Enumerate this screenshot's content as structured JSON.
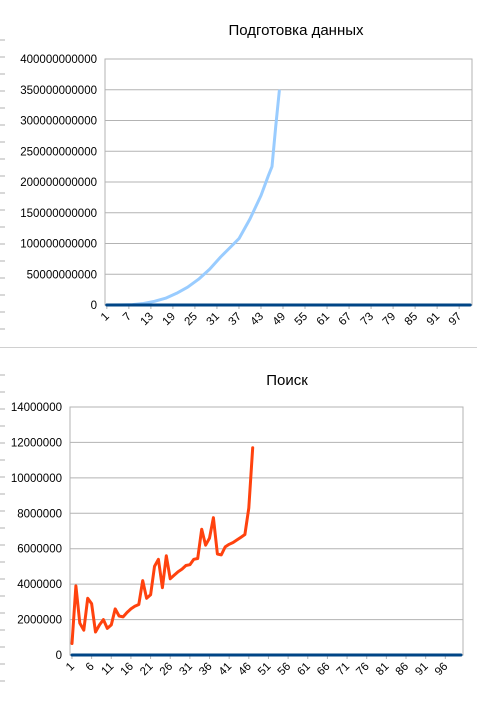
{
  "chart_data": [
    {
      "type": "line",
      "title": "Подготовка данных",
      "xlabel": "",
      "ylabel": "",
      "ylim": [
        0,
        400000000000
      ],
      "y_ticks": [
        0,
        50000000000,
        100000000000,
        150000000000,
        200000000000,
        250000000000,
        300000000000,
        350000000000,
        400000000000
      ],
      "y_tick_labels": [
        "0",
        "50000000000",
        "100000000000",
        "150000000000",
        "200000000000",
        "250000000000",
        "300000000000",
        "350000000000",
        "400000000000"
      ],
      "x_categories_count": 100,
      "x_tick_labels": [
        "1",
        "7",
        "13",
        "19",
        "25",
        "31",
        "37",
        "43",
        "49",
        "55",
        "61",
        "67",
        "73",
        "79",
        "85",
        "91",
        "97"
      ],
      "x_tick_positions": [
        1,
        7,
        13,
        19,
        25,
        31,
        37,
        43,
        49,
        55,
        61,
        67,
        73,
        79,
        85,
        91,
        97
      ],
      "grid": true,
      "legend": "none",
      "series": [
        {
          "color": "#99ccff",
          "points": [
            [
              1,
              0
            ],
            [
              5,
              100000000
            ],
            [
              8,
              600000000
            ],
            [
              11,
              2500000000
            ],
            [
              14,
              6000000000
            ],
            [
              17,
              11000000000
            ],
            [
              20,
              19000000000
            ],
            [
              23,
              29000000000
            ],
            [
              26,
              42000000000
            ],
            [
              29,
              58000000000
            ],
            [
              32,
              78000000000
            ],
            [
              35,
              96000000000
            ],
            [
              37,
              108000000000
            ],
            [
              40,
              140000000000
            ],
            [
              43,
              178000000000
            ],
            [
              45,
              210000000000
            ],
            [
              46,
              225000000000
            ],
            [
              47,
              290000000000
            ],
            [
              48,
              348000000000
            ]
          ]
        },
        {
          "color": "#004586",
          "points": [
            [
              1,
              0
            ],
            [
              100,
              0
            ]
          ]
        }
      ]
    },
    {
      "type": "line",
      "title": "Поиск",
      "xlabel": "",
      "ylabel": "",
      "ylim": [
        0,
        14000000
      ],
      "y_ticks": [
        0,
        2000000,
        4000000,
        6000000,
        8000000,
        10000000,
        12000000,
        14000000
      ],
      "y_tick_labels": [
        "0",
        "2000000",
        "4000000",
        "6000000",
        "8000000",
        "10000000",
        "12000000",
        "14000000"
      ],
      "x_categories_count": 100,
      "x_tick_labels": [
        "1",
        "6",
        "11",
        "16",
        "21",
        "26",
        "31",
        "36",
        "41",
        "46",
        "51",
        "56",
        "61",
        "66",
        "71",
        "76",
        "81",
        "86",
        "91",
        "96"
      ],
      "x_tick_positions": [
        1,
        6,
        11,
        16,
        21,
        26,
        31,
        36,
        41,
        46,
        51,
        56,
        61,
        66,
        71,
        76,
        81,
        86,
        91,
        96
      ],
      "grid": true,
      "legend": "none",
      "series": [
        {
          "color": "#ff420e",
          "points": [
            [
              1,
              650000
            ],
            [
              2,
              3900000
            ],
            [
              3,
              1800000
            ],
            [
              4,
              1400000
            ],
            [
              5,
              3200000
            ],
            [
              6,
              2900000
            ],
            [
              7,
              1300000
            ],
            [
              8,
              1700000
            ],
            [
              9,
              2000000
            ],
            [
              10,
              1500000
            ],
            [
              11,
              1700000
            ],
            [
              12,
              2600000
            ],
            [
              13,
              2200000
            ],
            [
              14,
              2150000
            ],
            [
              15,
              2400000
            ],
            [
              16,
              2600000
            ],
            [
              17,
              2750000
            ],
            [
              18,
              2850000
            ],
            [
              19,
              4200000
            ],
            [
              20,
              3200000
            ],
            [
              21,
              3400000
            ],
            [
              22,
              5000000
            ],
            [
              23,
              5400000
            ],
            [
              24,
              3800000
            ],
            [
              25,
              5600000
            ],
            [
              26,
              4300000
            ],
            [
              27,
              4500000
            ],
            [
              28,
              4700000
            ],
            [
              29,
              4850000
            ],
            [
              30,
              5050000
            ],
            [
              31,
              5100000
            ],
            [
              32,
              5400000
            ],
            [
              33,
              5450000
            ],
            [
              34,
              7100000
            ],
            [
              35,
              6200000
            ],
            [
              36,
              6600000
            ],
            [
              37,
              7750000
            ],
            [
              38,
              5700000
            ],
            [
              39,
              5650000
            ],
            [
              40,
              6100000
            ],
            [
              41,
              6250000
            ],
            [
              42,
              6350000
            ],
            [
              43,
              6500000
            ],
            [
              44,
              6650000
            ],
            [
              45,
              6800000
            ],
            [
              46,
              8300000
            ],
            [
              47,
              11700000
            ]
          ]
        },
        {
          "color": "#004586",
          "points": [
            [
              1,
              0
            ],
            [
              100,
              0
            ]
          ]
        }
      ]
    }
  ]
}
